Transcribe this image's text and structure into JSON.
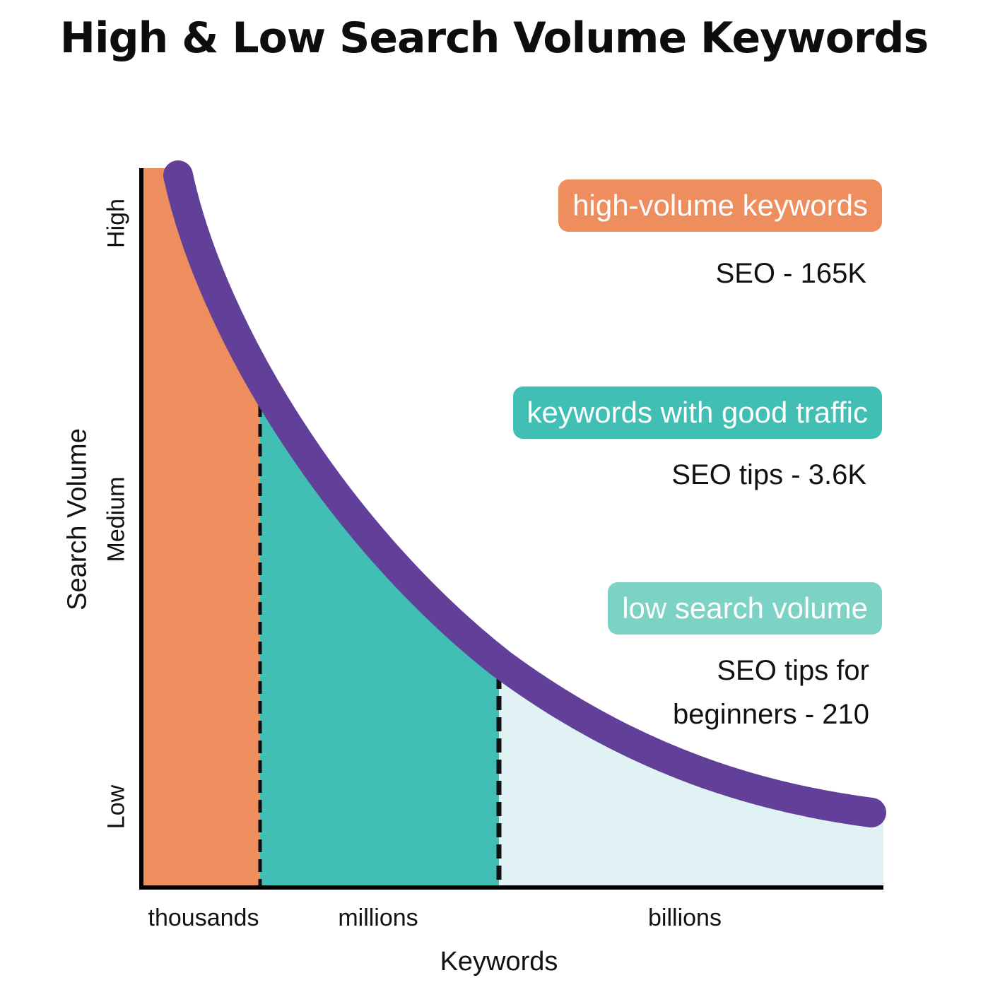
{
  "title": "High & Low Search Volume Keywords",
  "y_axis": {
    "label": "Search Volume",
    "ticks": [
      "High",
      "Medium",
      "Low"
    ]
  },
  "x_axis": {
    "label": "Keywords",
    "ticks": [
      "thousands",
      "millions",
      "billions"
    ]
  },
  "categories": [
    {
      "label": "high-volume keywords",
      "example": "SEO - 165K",
      "color": "#ee8e5f"
    },
    {
      "label": "keywords with good traffic",
      "example": "SEO tips - 3.6K",
      "color": "#42bfb4"
    },
    {
      "label": "low search volume",
      "example_lines": [
        "SEO tips for",
        "beginners - 210"
      ],
      "color": "#7bd2c5"
    }
  ],
  "colors": {
    "curve": "#62409a",
    "low_region_fill": "#e1f2f4",
    "axis": "#000000"
  }
}
